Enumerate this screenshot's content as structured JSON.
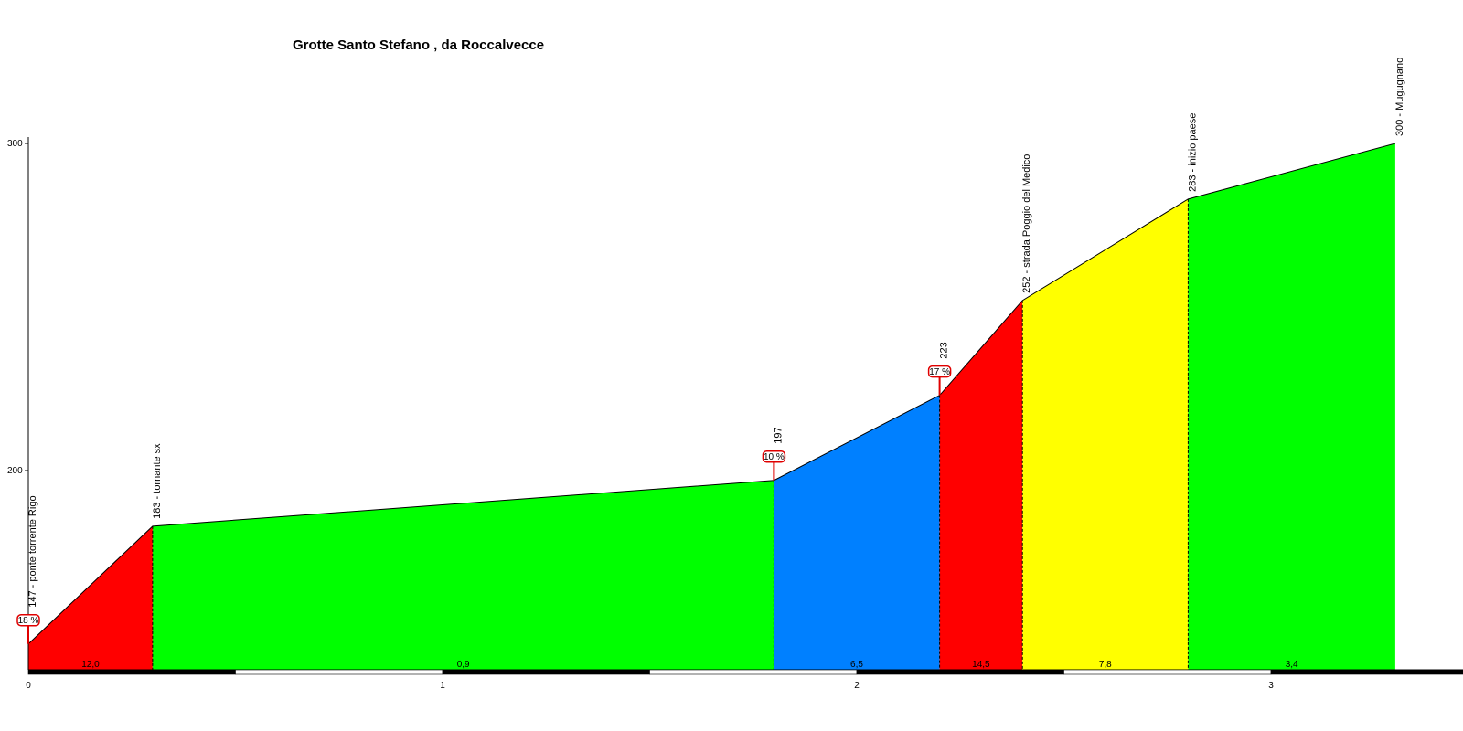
{
  "title": "Grotte Santo Stefano , da Roccalvecce",
  "chart_data": {
    "type": "area",
    "title": "Grotte Santo Stefano , da Roccalvecce",
    "xlabel": "",
    "ylabel": "",
    "xlim": [
      0,
      3.5
    ],
    "ylim": [
      140,
      300
    ],
    "x_ticks": [
      "0",
      "1",
      "2",
      "3"
    ],
    "y_ticks": [
      "200",
      "300"
    ],
    "profile": [
      {
        "x": 0.0,
        "elev": 147
      },
      {
        "x": 0.3,
        "elev": 183
      },
      {
        "x": 1.8,
        "elev": 197
      },
      {
        "x": 2.2,
        "elev": 223
      },
      {
        "x": 2.4,
        "elev": 252
      },
      {
        "x": 2.8,
        "elev": 283
      },
      {
        "x": 3.3,
        "elev": 300
      }
    ],
    "segments": [
      {
        "gradient": "12,0",
        "color": "#ff0000"
      },
      {
        "gradient": "0,9",
        "color": "#00ff00"
      },
      {
        "gradient": "6,5",
        "color": "#0080ff"
      },
      {
        "gradient": "14,5",
        "color": "#ff0000"
      },
      {
        "gradient": "7,8",
        "color": "#ffff00"
      },
      {
        "gradient": "3,4",
        "color": "#00ff00"
      }
    ],
    "point_labels": [
      "147 - ponte torrente Rigo",
      "183 - tornante sx",
      "197",
      "223",
      "252 - strada Poggio del Medico",
      "283 - inizio paese",
      "300 - Mugugnano"
    ],
    "max_gradient_markers": [
      {
        "x": 0.0,
        "elev": 147,
        "label": "18 %"
      },
      {
        "x": 1.8,
        "elev": 197,
        "label": "10 %"
      },
      {
        "x": 2.2,
        "elev": 223,
        "label": "17 %"
      }
    ],
    "km_bar": {
      "dark": "#000000",
      "light": "#ffffff"
    }
  }
}
